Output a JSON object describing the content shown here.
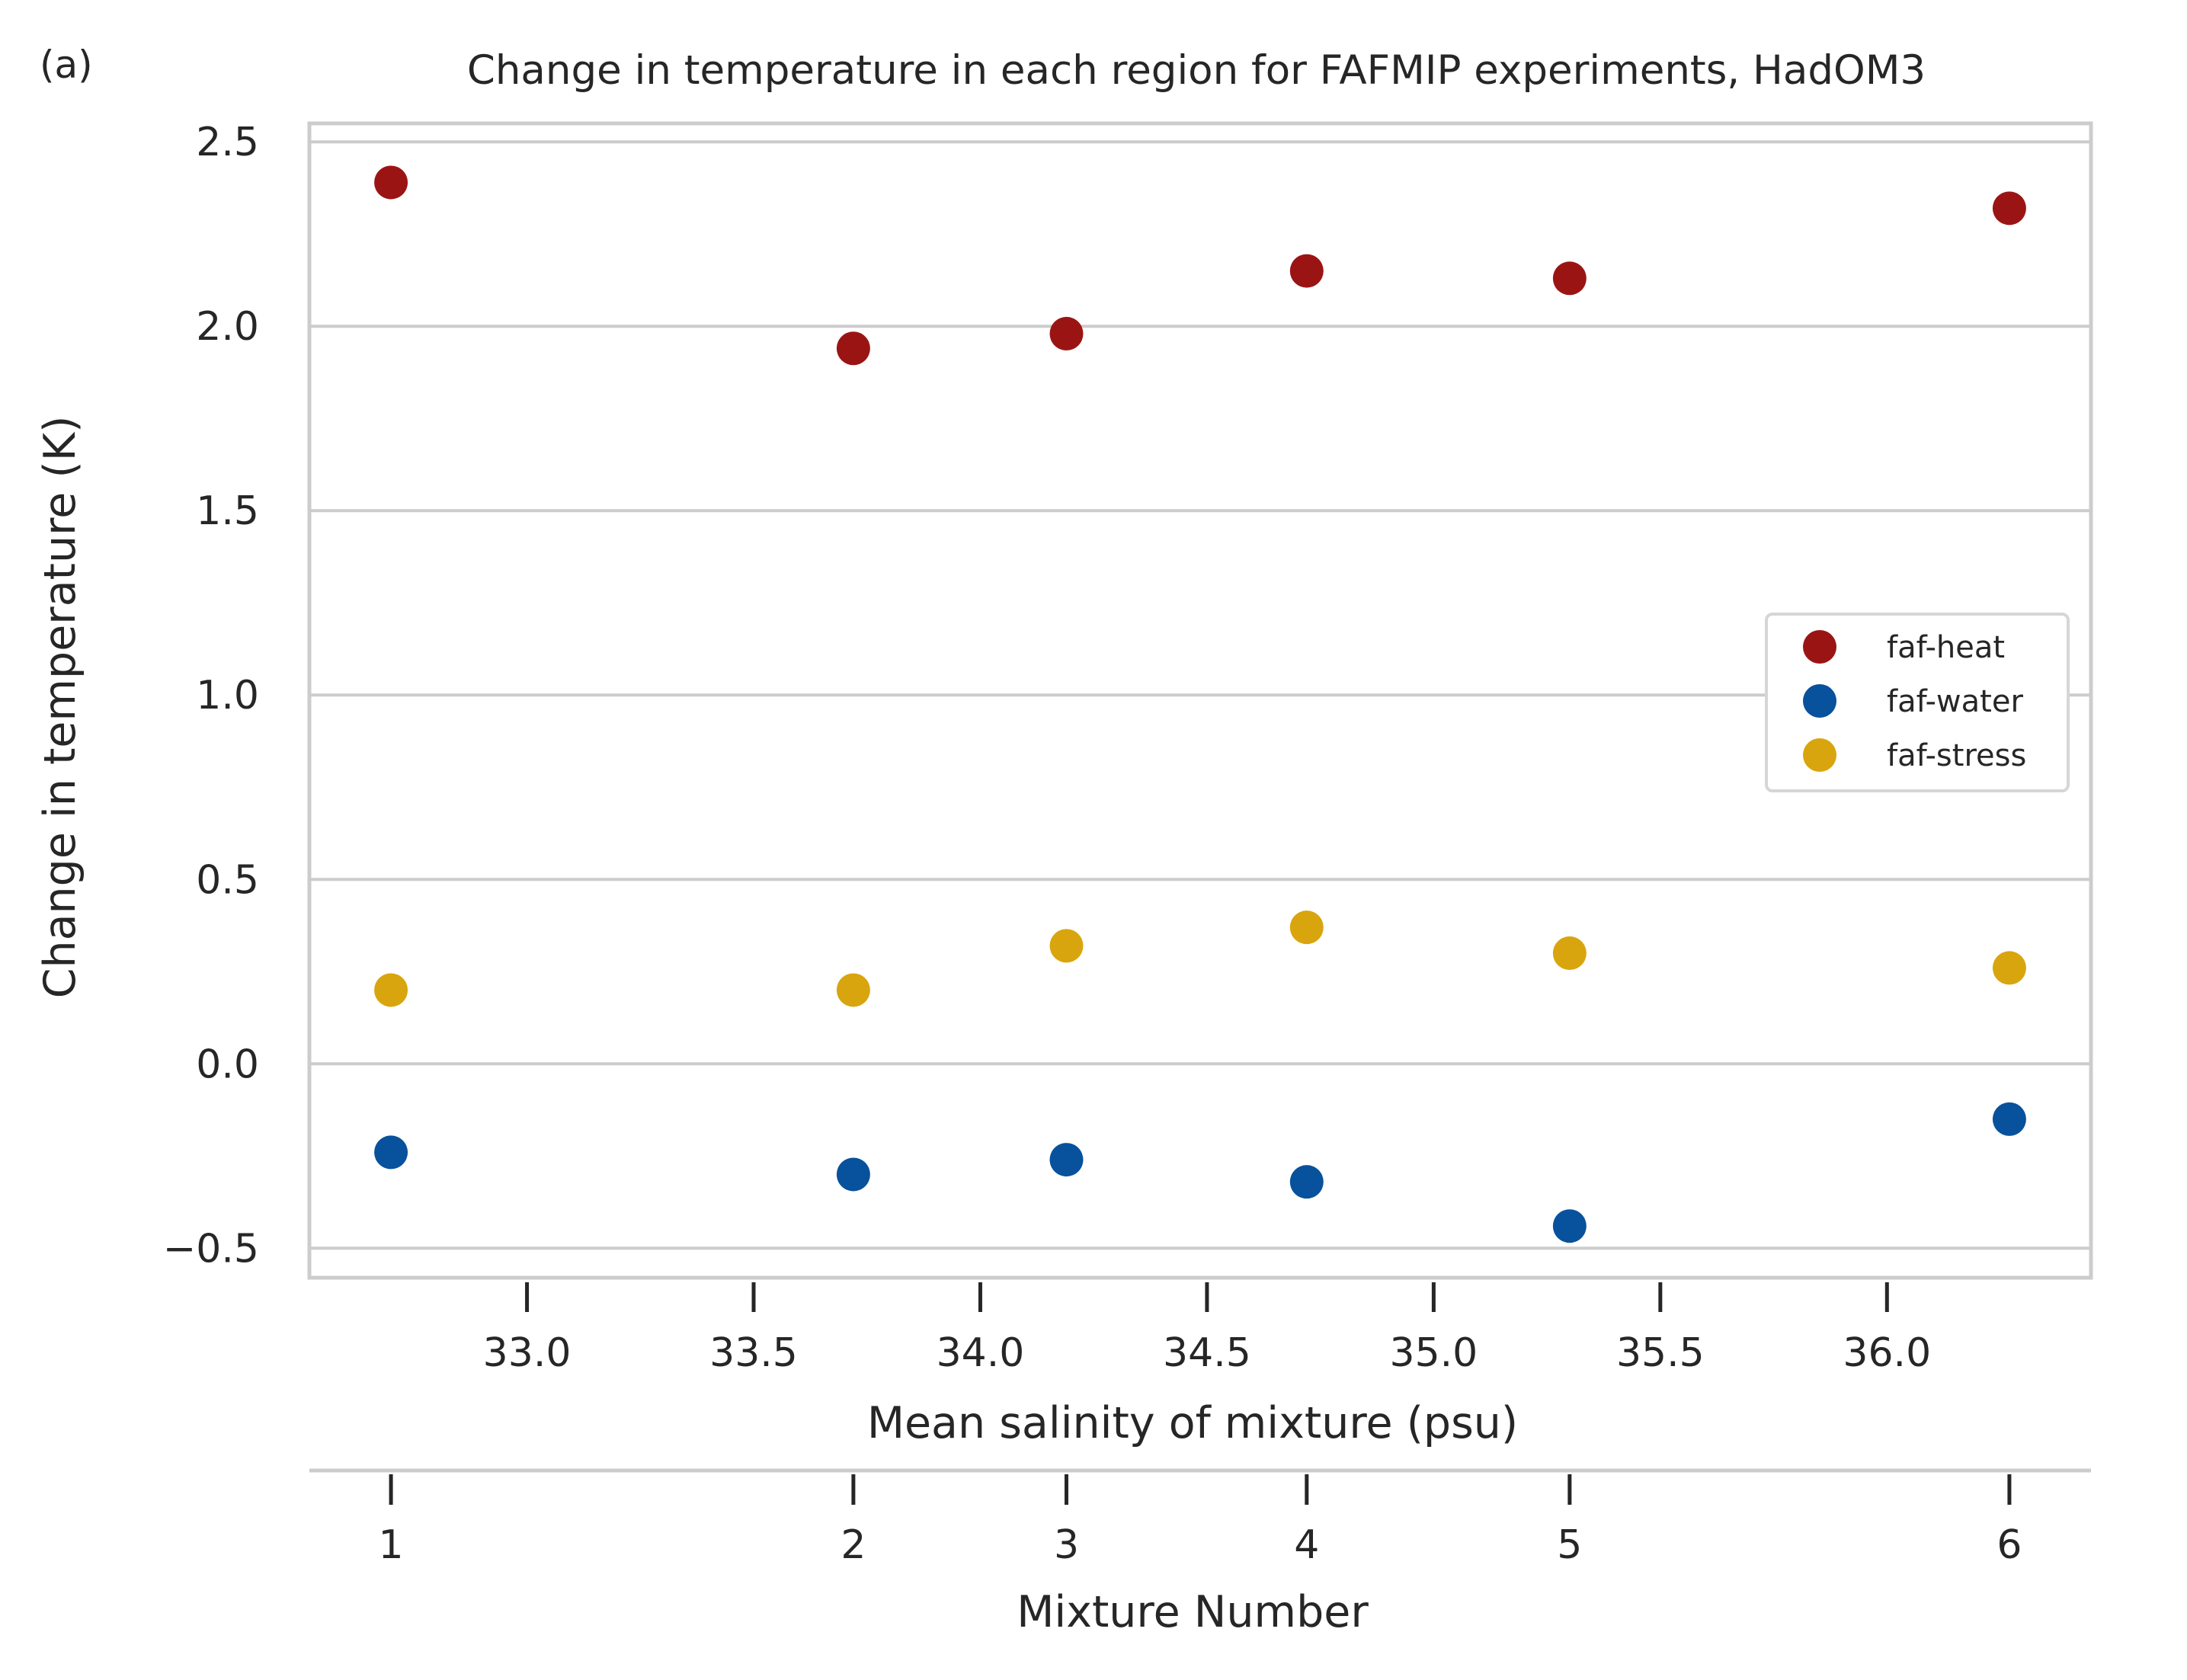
{
  "panel_label": "(a)",
  "chart_data": {
    "type": "scatter",
    "title": "Change in temperature in each region for FAFMIP experiments, HadOM3",
    "ylabel": "Change in temperature (K)",
    "xlabel": "Mean salinity of mixture (psu)",
    "x2label": "Mixture Number",
    "ylim": [
      -0.58,
      2.55
    ],
    "xlim": [
      32.52,
      36.45
    ],
    "yticks": [
      -0.5,
      0.0,
      0.5,
      1.0,
      1.5,
      2.0,
      2.5
    ],
    "ytick_labels": [
      "−0.5",
      "0.0",
      "0.5",
      "1.0",
      "1.5",
      "2.0",
      "2.5"
    ],
    "xticks": [
      33.0,
      33.5,
      34.0,
      34.5,
      35.0,
      35.5,
      36.0
    ],
    "xtick_labels": [
      "33.0",
      "33.5",
      "34.0",
      "34.5",
      "35.0",
      "35.5",
      "36.0"
    ],
    "x": [
      32.7,
      33.72,
      34.19,
      34.72,
      35.3,
      36.27
    ],
    "mixture_numbers": [
      "1",
      "2",
      "3",
      "4",
      "5",
      "6"
    ],
    "grid": "horizontal",
    "legend_position": "right",
    "series": [
      {
        "name": "faf-heat",
        "color": "#9b1414",
        "values": [
          2.39,
          1.94,
          1.98,
          2.15,
          2.13,
          2.32
        ]
      },
      {
        "name": "faf-water",
        "color": "#08519c",
        "values": [
          -0.24,
          -0.3,
          -0.26,
          -0.32,
          -0.44,
          -0.15
        ]
      },
      {
        "name": "faf-stress",
        "color": "#d9a50e",
        "values": [
          0.2,
          0.2,
          0.32,
          0.37,
          0.3,
          0.26
        ]
      }
    ]
  }
}
